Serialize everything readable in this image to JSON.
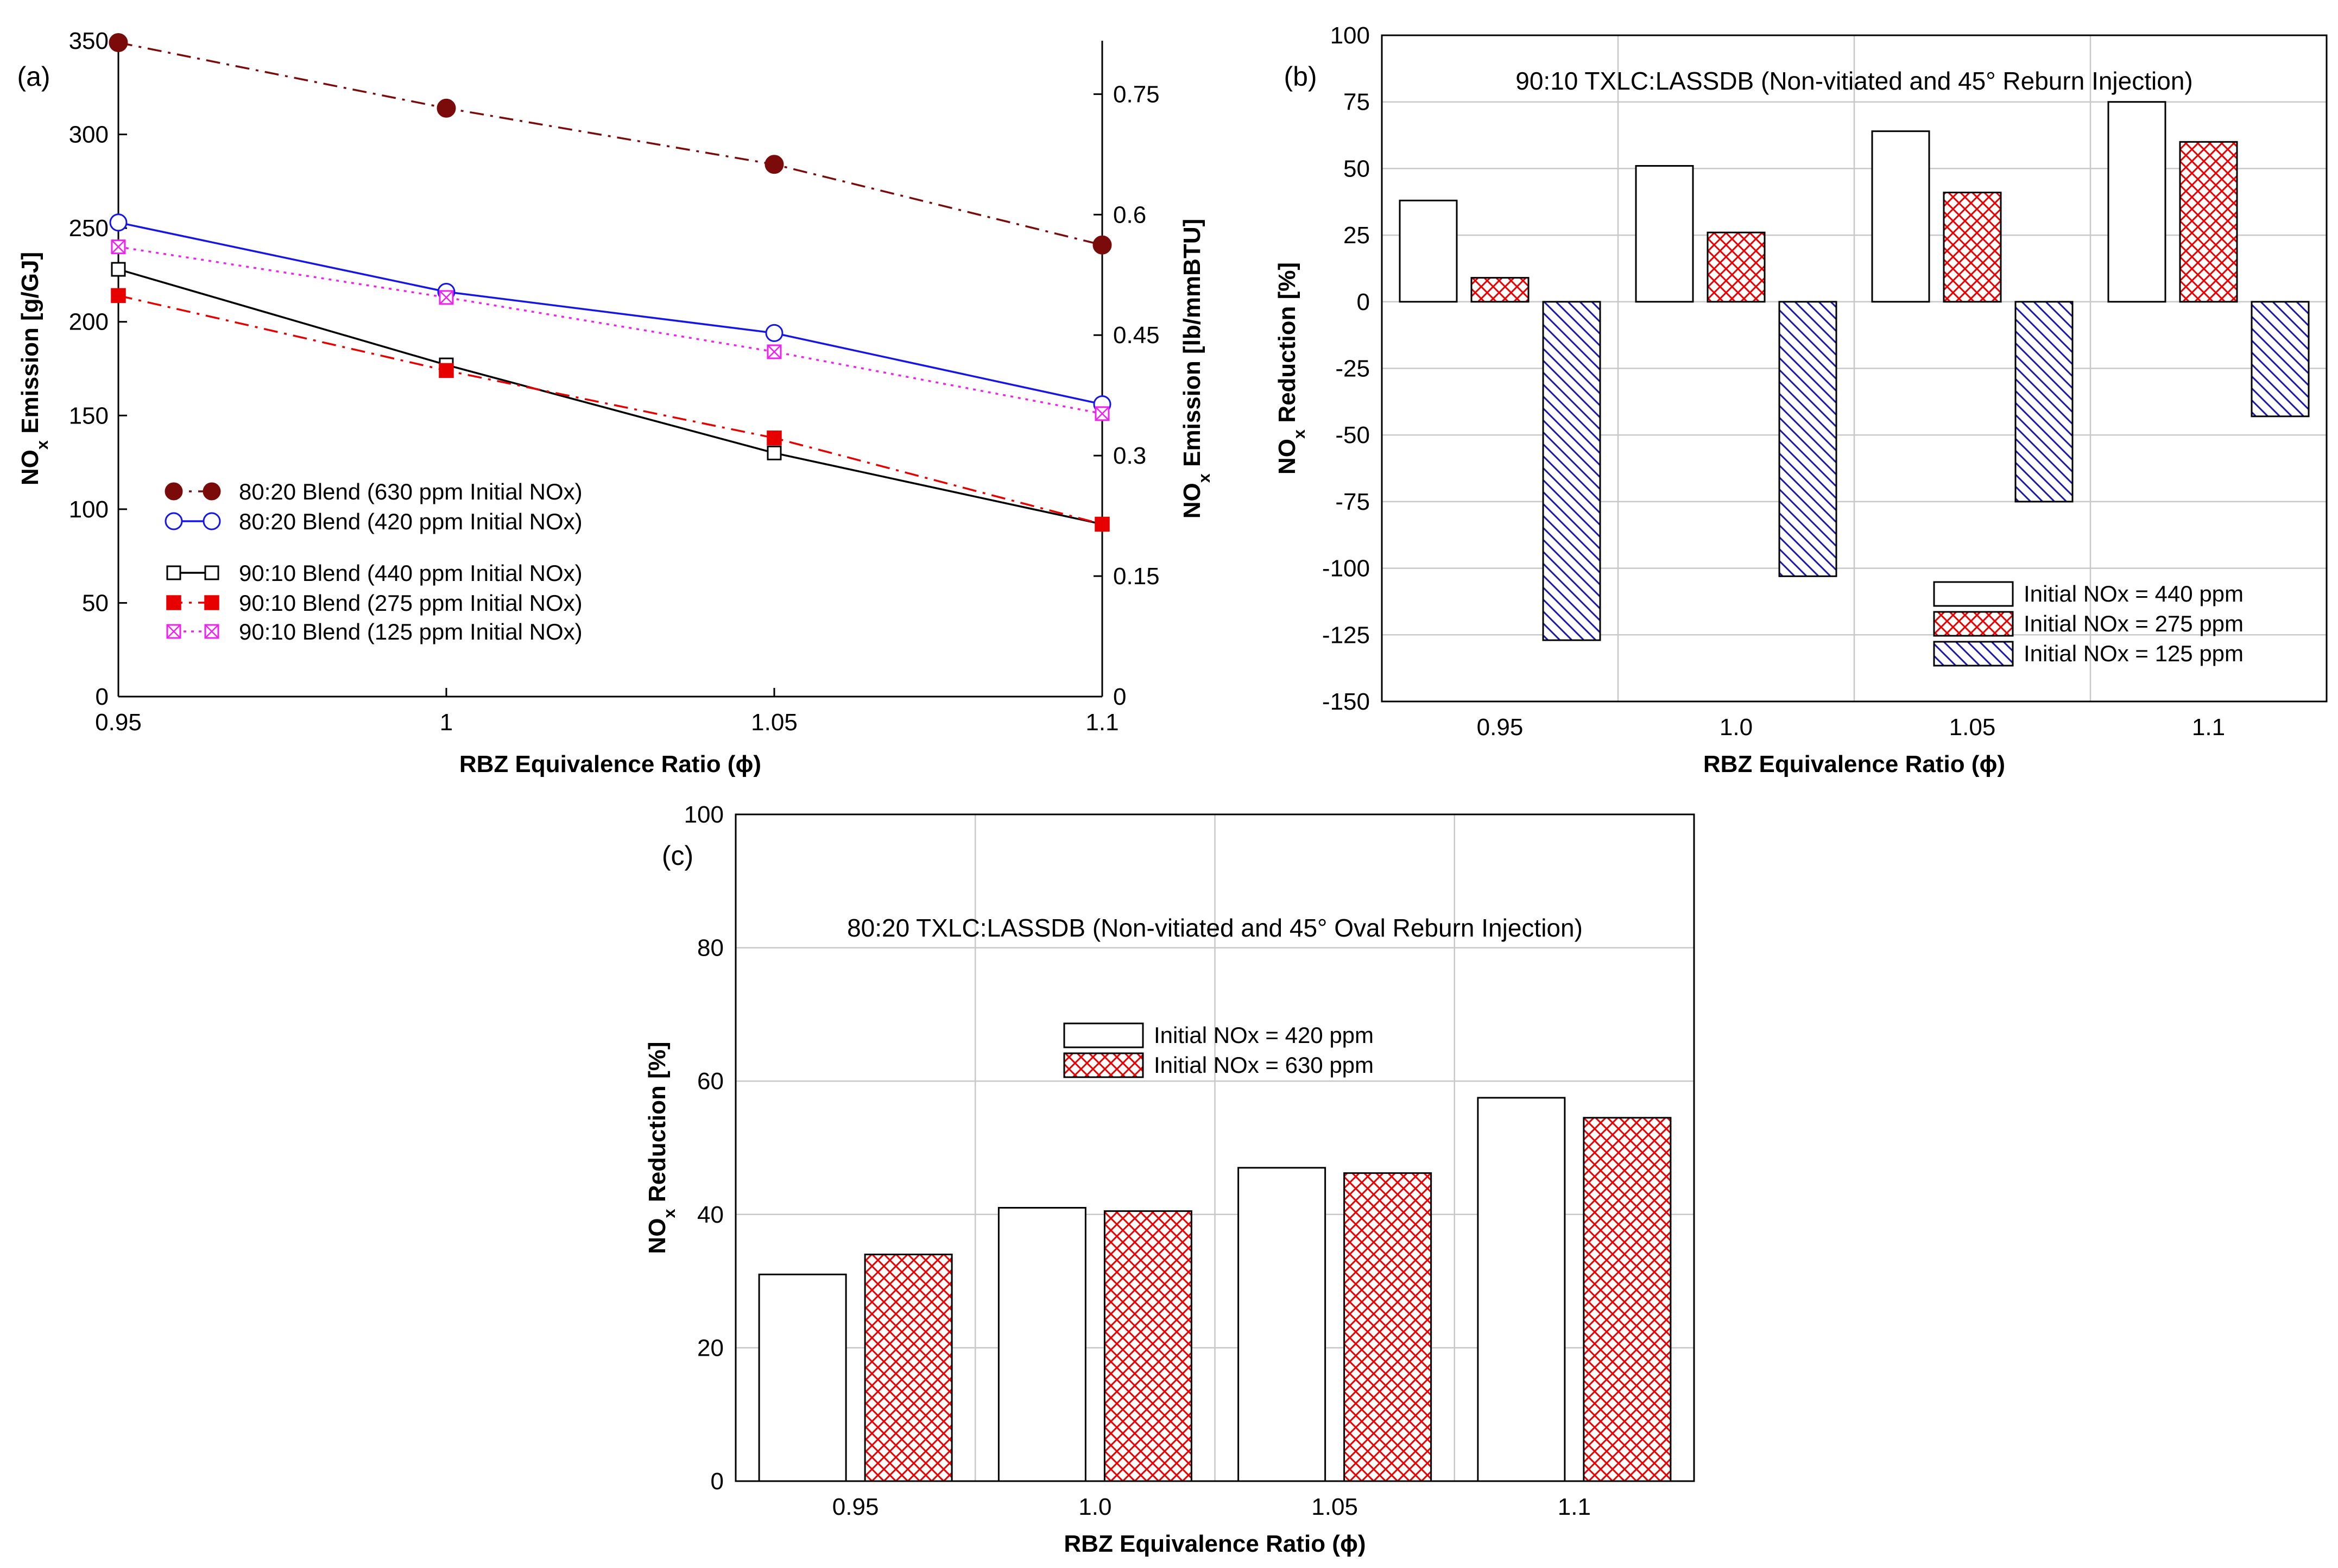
{
  "chart_data": [
    {
      "panel": "(a)",
      "type": "line",
      "xlabel": "RBZ Equivalence  Ratio (ϕ)",
      "ylabel": "NOx Emission [g/GJ]",
      "ylabel_right": "NOx Emission [lb/mmBTU]",
      "x": [
        0.95,
        1.0,
        1.05,
        1.1
      ],
      "xtick_labels": [
        "0.95",
        "1",
        "1.05",
        "1.1"
      ],
      "xlim": [
        0.95,
        1.1
      ],
      "ylim": [
        0,
        350
      ],
      "yticks": [
        0,
        50,
        100,
        150,
        200,
        250,
        300,
        350
      ],
      "ylim_right": [
        0,
        0.8165
      ],
      "yticks_right": [
        "0",
        "0.15",
        "0.3",
        "0.45",
        "0.6",
        "0.75"
      ],
      "grid": false,
      "series": [
        {
          "name": "80:20 Blend (630 ppm Initial NOx)",
          "values": [
            349,
            314,
            284,
            241
          ],
          "color": "#7b0a0a",
          "marker": "filled-circle",
          "dash": "dashdot"
        },
        {
          "name": "80:20 Blend (420 ppm Initial NOx)",
          "values": [
            253,
            216,
            194,
            156
          ],
          "color": "#1515e6",
          "marker": "open-circle",
          "dash": "solid"
        },
        {
          "name": "90:10 Blend (440 ppm Initial NOx)",
          "values": [
            228,
            177,
            130,
            92
          ],
          "color": "#000000",
          "marker": "open-square",
          "dash": "solid"
        },
        {
          "name": "90:10 Blend (275 ppm Initial NOx)",
          "values": [
            214,
            174,
            138,
            92
          ],
          "color": "#e60000",
          "marker": "filled-square",
          "dash": "dashdot"
        },
        {
          "name": "90:10 Blend (125 ppm Initial NOx)",
          "values": [
            240,
            213,
            184,
            151
          ],
          "color": "#ee22ee",
          "marker": "crossed-square",
          "dash": "dotted"
        }
      ]
    },
    {
      "panel": "(b)",
      "type": "bar",
      "title": "90:10 TXLC:LASSDB (Non-vitiated and 45° Reburn Injection)",
      "xlabel": "RBZ Equivalence Ratio (ϕ)",
      "ylabel": "NOx Reduction [%]",
      "categories": [
        "0.95",
        "1.0",
        "1.05",
        "1.1"
      ],
      "ylim": [
        -150,
        100
      ],
      "yticks": [
        -150,
        -125,
        -100,
        -75,
        -50,
        -25,
        0,
        25,
        50,
        75,
        100
      ],
      "grid": true,
      "series": [
        {
          "name": "Initial NOx = 440 ppm",
          "values": [
            38,
            51,
            64,
            75
          ],
          "fill": "open"
        },
        {
          "name": "Initial NOx = 275 ppm",
          "values": [
            9,
            26,
            41,
            60
          ],
          "fill": "red-crosshatch"
        },
        {
          "name": "Initial NOx = 125 ppm",
          "values": [
            -127,
            -103,
            -75,
            -43
          ],
          "fill": "blue-diagonal"
        }
      ]
    },
    {
      "panel": "(c)",
      "type": "bar",
      "title": "80:20 TXLC:LASSDB (Non-vitiated and 45° Oval Reburn Injection)",
      "xlabel": "RBZ Equivalence Ratio (ϕ)",
      "ylabel": "NOx Reduction [%]",
      "categories": [
        "0.95",
        "1.0",
        "1.05",
        "1.1"
      ],
      "ylim": [
        0,
        100
      ],
      "yticks": [
        0,
        20,
        40,
        60,
        80,
        100
      ],
      "grid": true,
      "series": [
        {
          "name": "Initial NOx = 420 ppm",
          "values": [
            31,
            41,
            47,
            57.5
          ],
          "fill": "open"
        },
        {
          "name": "Initial NOx = 630 ppm",
          "values": [
            34,
            40.5,
            46.2,
            54.5
          ],
          "fill": "red-crosshatch"
        }
      ]
    }
  ]
}
